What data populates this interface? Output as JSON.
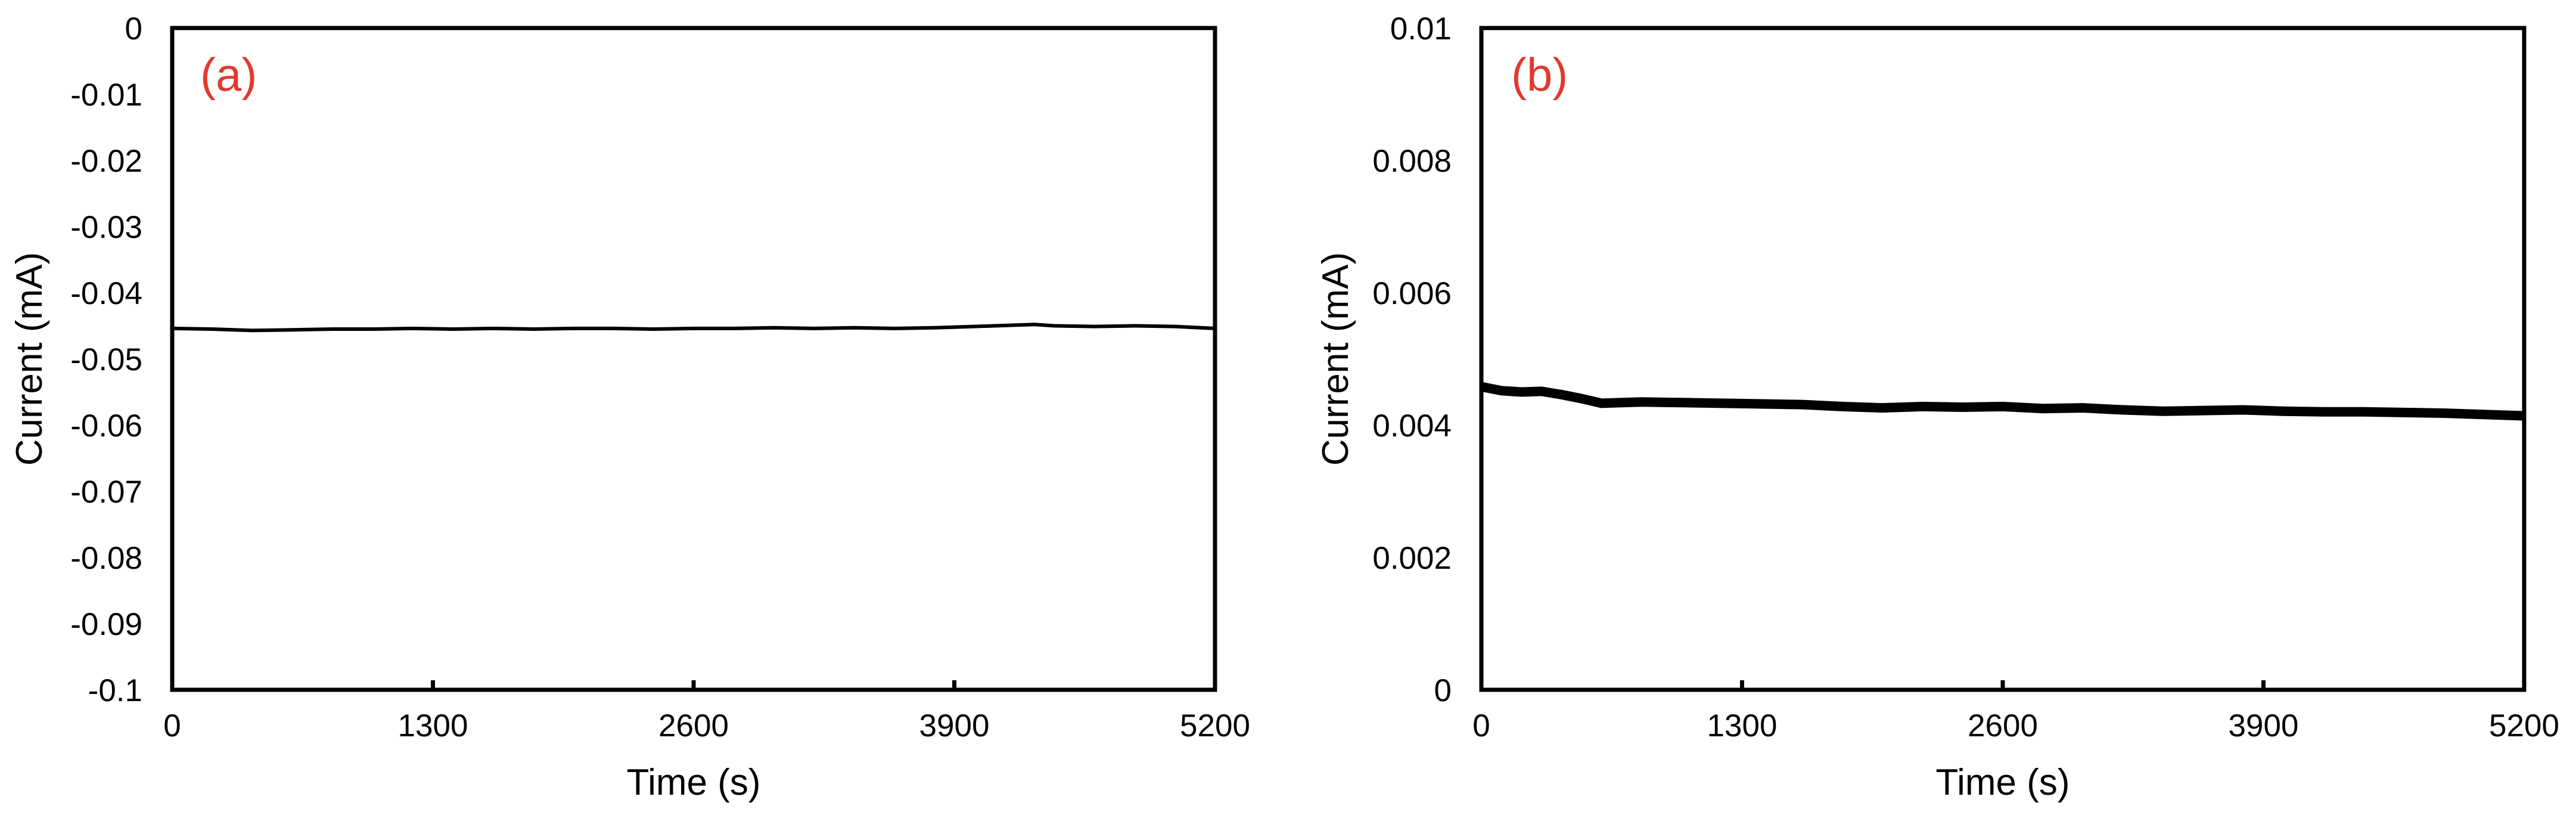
{
  "colors": {
    "panel_label": "#e03a2f",
    "series": "#000000",
    "frame": "#000000",
    "background": "#ffffff"
  },
  "chart_data": [
    {
      "type": "line",
      "panel_label": "(a)",
      "xlabel": "Time (s)",
      "ylabel": "Current (mA)",
      "xlim": [
        0,
        5200
      ],
      "ylim": [
        -0.1,
        0
      ],
      "xticks": [
        "0",
        "1300",
        "2600",
        "3900",
        "5200"
      ],
      "yticks": [
        "0",
        "-0.01",
        "-0.02",
        "-0.03",
        "-0.04",
        "-0.05",
        "-0.06",
        "-0.07",
        "-0.08",
        "-0.09",
        "-0.1"
      ],
      "grid": false,
      "legend": "none",
      "series": [
        {
          "x": [
            0,
            200,
            400,
            600,
            800,
            1000,
            1200,
            1400,
            1600,
            1800,
            2000,
            2200,
            2400,
            2600,
            2800,
            3000,
            3200,
            3400,
            3600,
            3800,
            4000,
            4200,
            4300,
            4400,
            4600,
            4800,
            5000,
            5200
          ],
          "y": [
            -0.0454,
            -0.0455,
            -0.0457,
            -0.0456,
            -0.0455,
            -0.0455,
            -0.0454,
            -0.0455,
            -0.0454,
            -0.0455,
            -0.0454,
            -0.0454,
            -0.0455,
            -0.0454,
            -0.0454,
            -0.0453,
            -0.0454,
            -0.0453,
            -0.0454,
            -0.0453,
            -0.0451,
            -0.0449,
            -0.0448,
            -0.045,
            -0.0451,
            -0.045,
            -0.0451,
            -0.0454
          ]
        }
      ]
    },
    {
      "type": "line",
      "panel_label": "(b)",
      "xlabel": "Time (s)",
      "ylabel": "Current (mA)",
      "xlim": [
        0,
        5200
      ],
      "ylim": [
        0,
        0.01
      ],
      "xticks": [
        "0",
        "1300",
        "2600",
        "3900",
        "5200"
      ],
      "yticks": [
        "0.01",
        "0.008",
        "0.006",
        "0.004",
        "0.002",
        "0"
      ],
      "grid": false,
      "legend": "none",
      "series": [
        {
          "x": [
            0,
            100,
            200,
            300,
            400,
            500,
            600,
            700,
            800,
            1000,
            1200,
            1400,
            1600,
            1800,
            2000,
            2200,
            2400,
            2600,
            2800,
            3000,
            3200,
            3400,
            3600,
            3800,
            4000,
            4200,
            4400,
            4600,
            4800,
            5000,
            5200
          ],
          "y": [
            0.00458,
            0.00452,
            0.0045,
            0.00451,
            0.00446,
            0.0044,
            0.00433,
            0.00434,
            0.00435,
            0.00434,
            0.00433,
            0.00432,
            0.00431,
            0.00428,
            0.00426,
            0.00428,
            0.00427,
            0.00428,
            0.00425,
            0.00426,
            0.00423,
            0.00421,
            0.00422,
            0.00423,
            0.00421,
            0.0042,
            0.0042,
            0.00419,
            0.00418,
            0.00416,
            0.00414
          ]
        }
      ]
    }
  ]
}
